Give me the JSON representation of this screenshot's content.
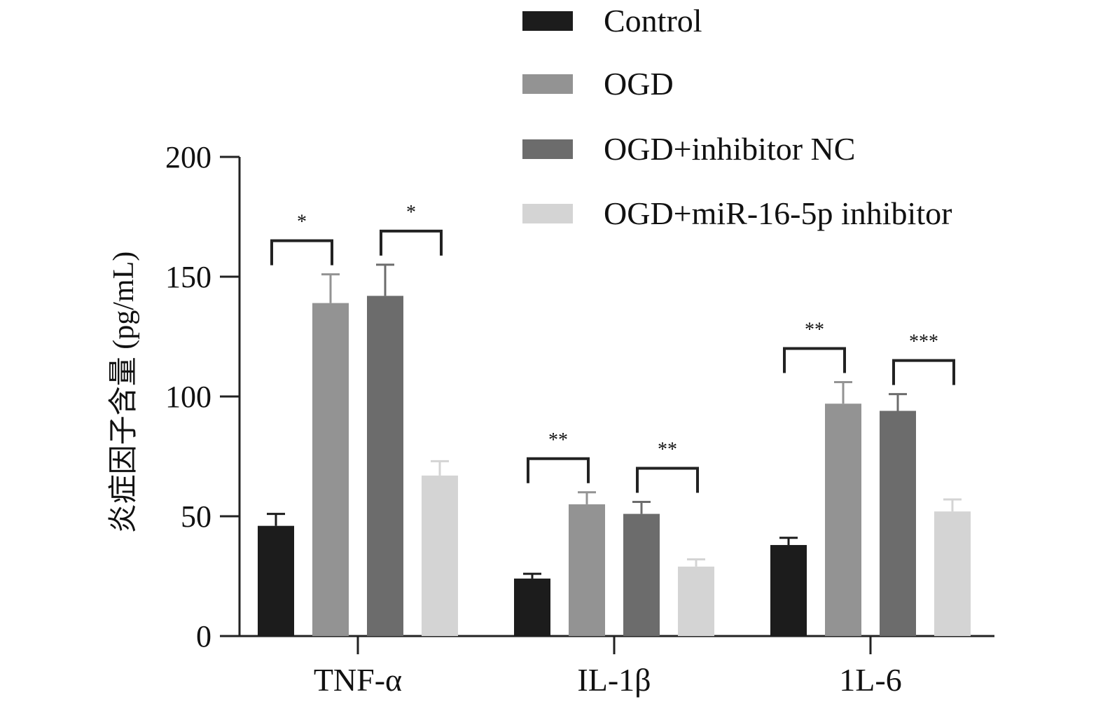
{
  "chart_data": {
    "type": "bar",
    "ylabel": "炎症因子含量 (pg/mL)",
    "xlabel": "",
    "ylim": [
      0,
      200
    ],
    "yticks": [
      0,
      50,
      100,
      150,
      200
    ],
    "categories": [
      "TNF-α",
      "IL-1β",
      "1L-6"
    ],
    "legend_position": "top-right",
    "series": [
      {
        "name": "Control",
        "color": "#1c1c1c",
        "values": [
          46,
          24,
          38
        ],
        "errors": [
          5,
          2,
          3
        ]
      },
      {
        "name": "OGD",
        "color": "#939393",
        "values": [
          139,
          55,
          97
        ],
        "errors": [
          12,
          5,
          9
        ]
      },
      {
        "name": "OGD+inhibitor NC",
        "color": "#6c6c6c",
        "values": [
          142,
          51,
          94
        ],
        "errors": [
          13,
          5,
          7
        ]
      },
      {
        "name": "OGD+miR-16-5p inhibitor",
        "color": "#d4d4d4",
        "values": [
          67,
          29,
          52
        ],
        "errors": [
          6,
          3,
          5
        ]
      }
    ],
    "significance": [
      {
        "category": 0,
        "from": 0,
        "to": 1,
        "label": "*"
      },
      {
        "category": 0,
        "from": 2,
        "to": 3,
        "label": "*"
      },
      {
        "category": 1,
        "from": 0,
        "to": 1,
        "label": "**"
      },
      {
        "category": 1,
        "from": 2,
        "to": 3,
        "label": "**"
      },
      {
        "category": 2,
        "from": 0,
        "to": 1,
        "label": "**"
      },
      {
        "category": 2,
        "from": 2,
        "to": 3,
        "label": "***"
      }
    ]
  }
}
